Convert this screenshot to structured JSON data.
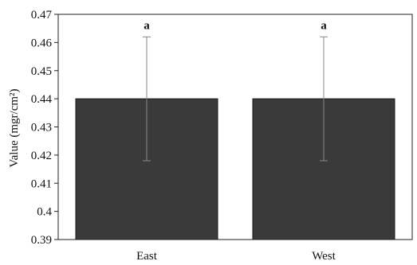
{
  "chart_data": {
    "type": "bar",
    "title": "",
    "xlabel": "",
    "ylabel": "Value (mgr/cm²)",
    "ylim": [
      0.39,
      0.47
    ],
    "yticks": [
      "0.39",
      "0.4",
      "0.41",
      "0.42",
      "0.43",
      "0.44",
      "0.45",
      "0.46",
      "0.47"
    ],
    "categories": [
      "East",
      "West"
    ],
    "values": [
      0.44,
      0.44
    ],
    "error": [
      0.022,
      0.022
    ],
    "annotations": [
      "a",
      "a"
    ],
    "grid": false,
    "bar_color": "#3a3a3a",
    "error_color": "#888888"
  }
}
